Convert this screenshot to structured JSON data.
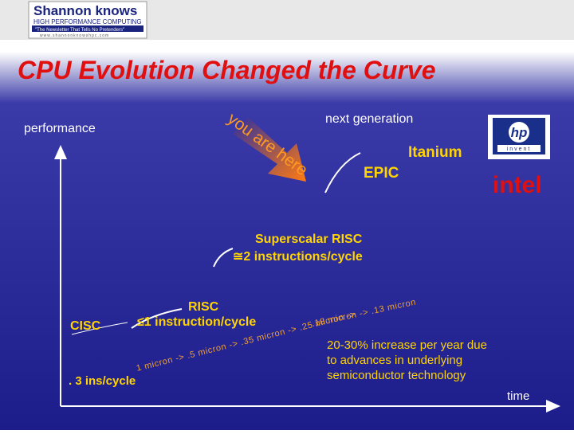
{
  "logo": {
    "name": "Shannon knows",
    "subtitle": "HIGH PERFORMANCE COMPUTING",
    "tagline": "\"The Newsletter That Tells No Pretenders\"",
    "url": "www.shannonknowshpc.com"
  },
  "title": "CPU Evolution Changed the Curve",
  "axes": {
    "y_label": "performance",
    "x_label": "time"
  },
  "marker": {
    "text": "you are here"
  },
  "stages": {
    "next_generation": "next generation",
    "itanium": "Itanium",
    "epic": "EPIC",
    "superscalar": "Superscalar RISC",
    "superscalar_rate": "≅2 instructions/cycle",
    "risc": "RISC",
    "risc_rate": "≤1 instruction/cycle",
    "cisc": "CISC",
    "cisc_rate": ". 3 ins/cycle"
  },
  "process": [
    "1 micron -> .5 micron -> .35 micron -> .25 micron ->",
    ".18 micron -> .13 micron"
  ],
  "note": [
    "20-30% increase per year due",
    "to advances in underlying",
    "semiconductor  technology"
  ],
  "logos": {
    "hp": "hp",
    "hp_tagline": "invent",
    "intel": "intel"
  }
}
